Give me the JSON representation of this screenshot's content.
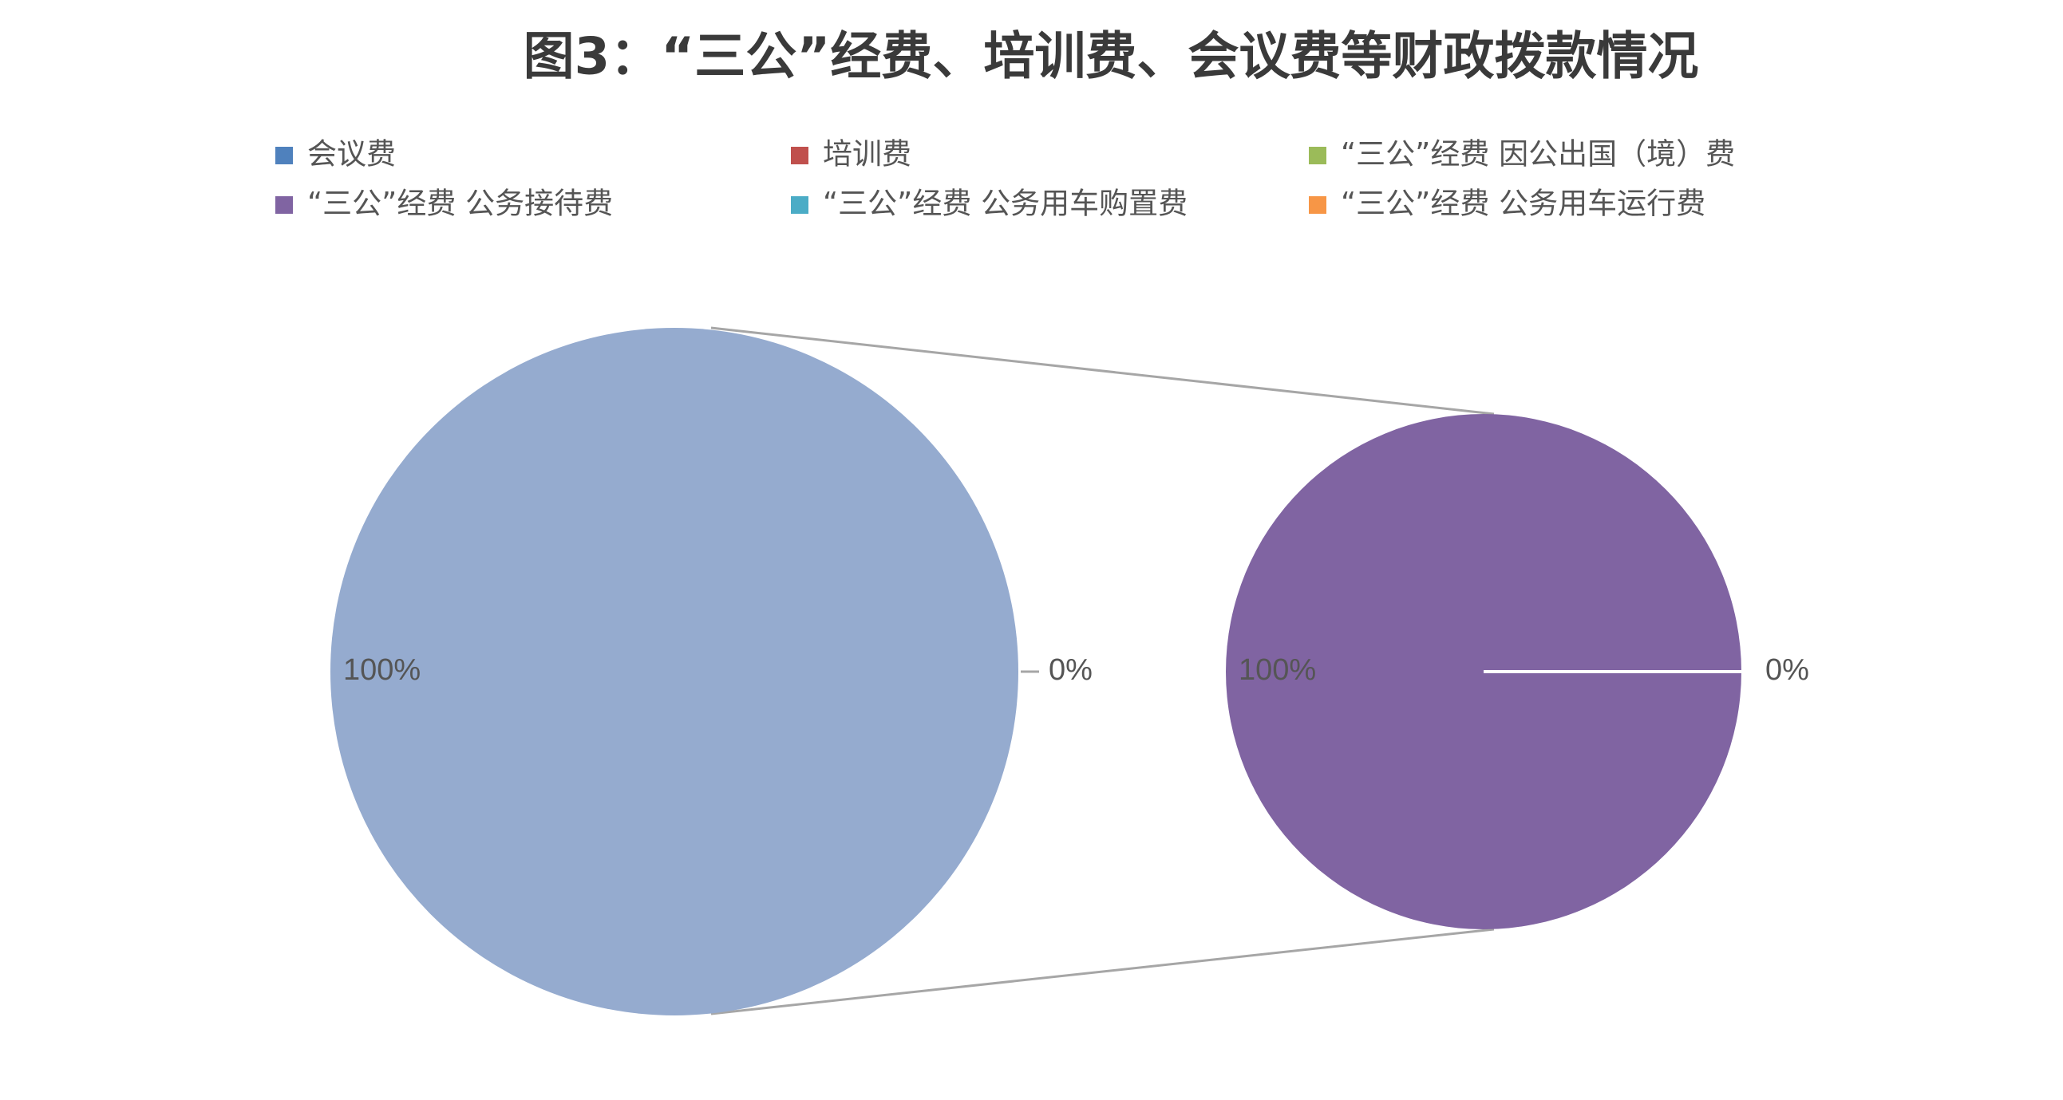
{
  "chart_data": {
    "type": "pie-of-pie",
    "title": "图3：“三公”经费、培训费、会议费等财政拨款情况",
    "legend": [
      {
        "name": "会议费",
        "color": "#4f81bd"
      },
      {
        "name": "培训费",
        "color": "#c0504d"
      },
      {
        "name": "“三公”经费 因公出国（境）费",
        "color": "#9bbb59"
      },
      {
        "name": "“三公”经费 公务接待费",
        "color": "#8064a2"
      },
      {
        "name": "“三公”经费 公务用车购置费",
        "color": "#4bacc6"
      },
      {
        "name": "“三公”经费 公务用车运行费",
        "color": "#f79646"
      }
    ],
    "main_pie": {
      "values": [
        100,
        0
      ],
      "value_labels": [
        "100%",
        "0%"
      ],
      "colors": [
        "#95abcf",
        "#4f81bd"
      ]
    },
    "secondary_pie": {
      "values": [
        100,
        0
      ],
      "value_labels": [
        "100%",
        "0%"
      ],
      "colors": [
        "#8064a2",
        "#4bacc6"
      ]
    }
  }
}
